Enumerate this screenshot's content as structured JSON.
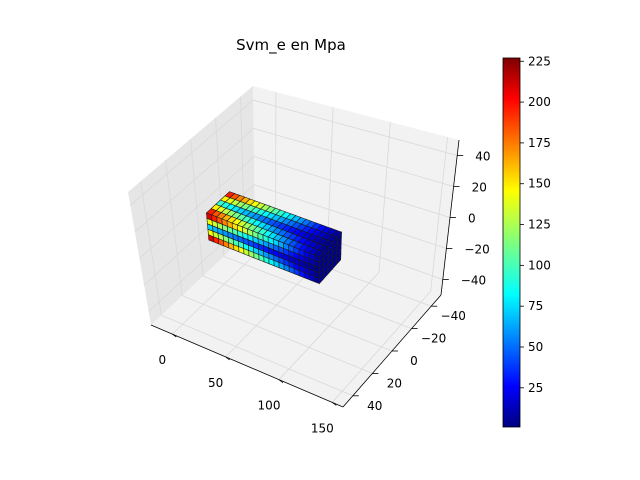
{
  "chart_data": {
    "type": "surface3d",
    "title": "Svm_e en Mpa",
    "xlabel": "",
    "ylabel": "",
    "zlabel": "",
    "x_ticks": [
      "0",
      "50",
      "100",
      "150"
    ],
    "y_ticks": [
      "−40",
      "−20",
      "0",
      "20",
      "40"
    ],
    "z_ticks": [
      "−40",
      "−20",
      "0",
      "20",
      "40"
    ],
    "xlim": [
      -20,
      160
    ],
    "ylim": [
      -50,
      50
    ],
    "zlim": [
      -50,
      50
    ],
    "grid": true,
    "colormap": "jet",
    "colorbar": {
      "ticks": [
        "25",
        "50",
        "75",
        "100",
        "125",
        "150",
        "175",
        "200",
        "225"
      ],
      "range": [
        1,
        227
      ]
    },
    "mesh_object": {
      "shape": "rectangular beam",
      "x_extent": [
        0,
        100
      ],
      "y_extent": [
        -10,
        10
      ],
      "z_extent": [
        -10,
        10
      ],
      "stress_low_end_value": 5,
      "stress_high_end_value": 225,
      "stress_gradient": "high near x=0 (fixed end), low near x=100 (free end)"
    },
    "colors": {
      "pane": "#f2f2f2",
      "pane_dark": "#e6e6e6",
      "grid": "#d9d9d9",
      "mesh_edge": "#1a1a1a"
    }
  }
}
